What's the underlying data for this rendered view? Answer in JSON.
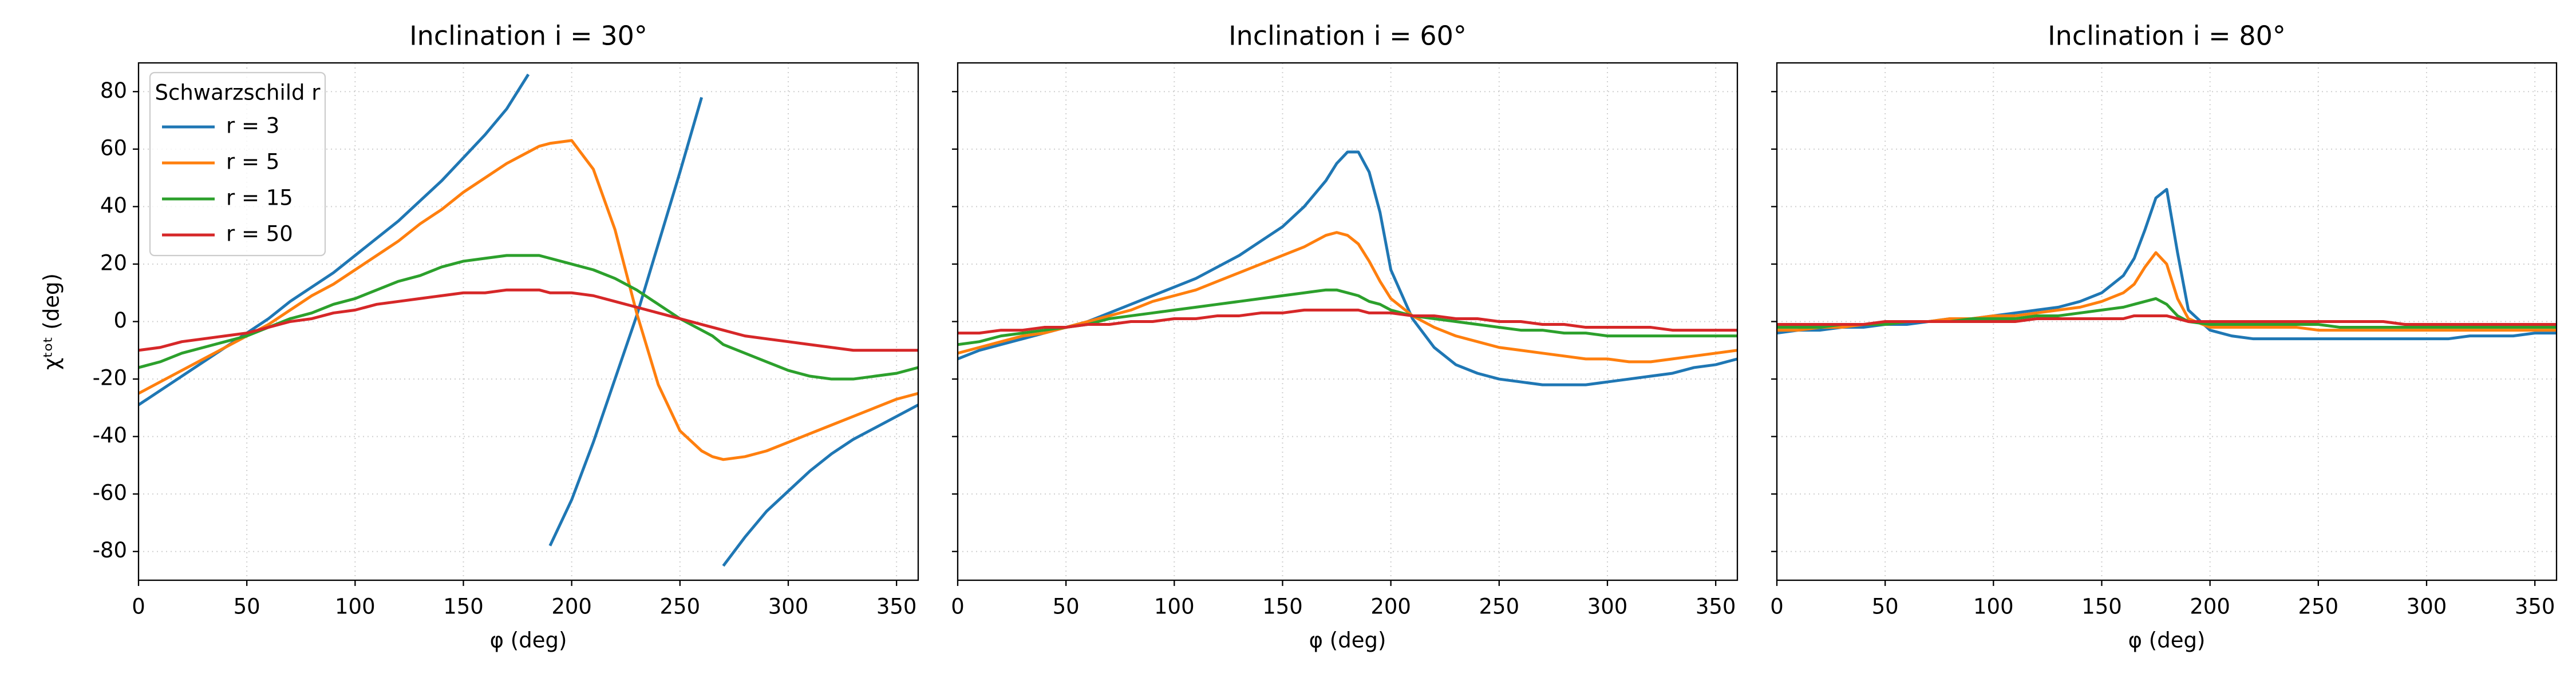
{
  "chart_data": [
    {
      "type": "line",
      "title": "Inclination i = 30°",
      "xlabel": "φ (deg)",
      "ylabel": "χᵗᵒᵗ (deg)",
      "x": [
        0,
        10,
        20,
        30,
        40,
        50,
        60,
        70,
        80,
        90,
        100,
        110,
        120,
        130,
        140,
        150,
        160,
        170,
        180,
        185,
        190,
        200,
        210,
        220,
        230,
        240,
        250,
        260,
        265,
        270,
        280,
        290,
        300,
        310,
        320,
        330,
        340,
        350,
        360
      ],
      "xlim": [
        0,
        360
      ],
      "xticks": [
        0,
        50,
        100,
        150,
        200,
        250,
        300,
        350
      ],
      "ylim": [
        -90,
        90
      ],
      "yticks": [
        -80,
        -60,
        -40,
        -20,
        0,
        20,
        40,
        60,
        80
      ],
      "show_ytick_labels": true,
      "grid": true,
      "legend": "upper left",
      "legend_title": "Schwarzschild r",
      "series": [
        {
          "name": "r = 3",
          "color": "#1f77b4",
          "values": [
            -29,
            -24,
            -19,
            -14,
            -9,
            -4,
            1,
            7,
            12,
            17,
            23,
            29,
            35,
            42,
            49,
            57,
            65,
            74,
            86,
            null,
            -78,
            -62,
            -42,
            -20,
            2,
            27,
            52,
            78,
            null,
            -85,
            -75,
            -66,
            -59,
            -52,
            -46,
            -41,
            -37,
            -33,
            -29
          ]
        },
        {
          "name": "r = 5",
          "color": "#ff7f0e",
          "values": [
            -25,
            -21,
            -17,
            -13,
            -9,
            -5,
            -1,
            4,
            9,
            13,
            18,
            23,
            28,
            34,
            39,
            45,
            50,
            55,
            59,
            61,
            62,
            63,
            53,
            32,
            3,
            -22,
            -38,
            -45,
            -47,
            -48,
            -47,
            -45,
            -42,
            -39,
            -36,
            -33,
            -30,
            -27,
            -25
          ]
        },
        {
          "name": "r = 15",
          "color": "#2ca02c",
          "values": [
            -16,
            -14,
            -11,
            -9,
            -7,
            -5,
            -2,
            1,
            3,
            6,
            8,
            11,
            14,
            16,
            19,
            21,
            22,
            23,
            23,
            23,
            22,
            20,
            18,
            15,
            11,
            6,
            1,
            -3,
            -5,
            -8,
            -11,
            -14,
            -17,
            -19,
            -20,
            -20,
            -19,
            -18,
            -16
          ]
        },
        {
          "name": "r = 50",
          "color": "#d62728",
          "values": [
            -10,
            -9,
            -7,
            -6,
            -5,
            -4,
            -2,
            0,
            1,
            3,
            4,
            6,
            7,
            8,
            9,
            10,
            10,
            11,
            11,
            11,
            10,
            10,
            9,
            7,
            5,
            3,
            1,
            -1,
            -2,
            -3,
            -5,
            -6,
            -7,
            -8,
            -9,
            -10,
            -10,
            -10,
            -10
          ]
        }
      ]
    },
    {
      "type": "line",
      "title": "Inclination i = 60°",
      "xlabel": "φ (deg)",
      "x": [
        0,
        10,
        20,
        30,
        40,
        50,
        60,
        70,
        80,
        90,
        100,
        110,
        120,
        130,
        140,
        150,
        160,
        170,
        175,
        180,
        185,
        190,
        195,
        200,
        210,
        220,
        230,
        240,
        250,
        260,
        270,
        280,
        290,
        300,
        310,
        320,
        330,
        340,
        350,
        360
      ],
      "xlim": [
        0,
        360
      ],
      "xticks": [
        0,
        50,
        100,
        150,
        200,
        250,
        300,
        350
      ],
      "ylim": [
        -90,
        90
      ],
      "yticks": [
        -80,
        -60,
        -40,
        -20,
        0,
        20,
        40,
        60,
        80
      ],
      "show_ytick_labels": false,
      "grid": true,
      "series": [
        {
          "color": "#1f77b4",
          "values": [
            -13,
            -10,
            -8,
            -6,
            -4,
            -2,
            0,
            3,
            6,
            9,
            12,
            15,
            19,
            23,
            28,
            33,
            40,
            49,
            55,
            59,
            59,
            52,
            38,
            18,
            1,
            -9,
            -15,
            -18,
            -20,
            -21,
            -22,
            -22,
            -22,
            -21,
            -20,
            -19,
            -18,
            -16,
            -15,
            -13
          ]
        },
        {
          "color": "#ff7f0e",
          "values": [
            -11,
            -9,
            -7,
            -5,
            -4,
            -2,
            0,
            2,
            4,
            7,
            9,
            11,
            14,
            17,
            20,
            23,
            26,
            30,
            31,
            30,
            27,
            21,
            14,
            8,
            2,
            -2,
            -5,
            -7,
            -9,
            -10,
            -11,
            -12,
            -13,
            -13,
            -14,
            -14,
            -13,
            -12,
            -11,
            -10
          ]
        },
        {
          "color": "#2ca02c",
          "values": [
            -8,
            -7,
            -5,
            -4,
            -3,
            -2,
            -1,
            1,
            2,
            3,
            4,
            5,
            6,
            7,
            8,
            9,
            10,
            11,
            11,
            10,
            9,
            7,
            6,
            4,
            2,
            1,
            0,
            -1,
            -2,
            -3,
            -3,
            -4,
            -4,
            -5,
            -5,
            -5,
            -5,
            -5,
            -5,
            -5
          ]
        },
        {
          "color": "#d62728",
          "values": [
            -4,
            -4,
            -3,
            -3,
            -2,
            -2,
            -1,
            -1,
            0,
            0,
            1,
            1,
            2,
            2,
            3,
            3,
            4,
            4,
            4,
            4,
            4,
            3,
            3,
            3,
            2,
            2,
            1,
            1,
            0,
            0,
            -1,
            -1,
            -2,
            -2,
            -2,
            -2,
            -3,
            -3,
            -3,
            -3
          ]
        }
      ]
    },
    {
      "type": "line",
      "title": "Inclination i = 80°",
      "xlabel": "φ (deg)",
      "x": [
        0,
        10,
        20,
        30,
        40,
        50,
        60,
        70,
        80,
        90,
        100,
        110,
        120,
        130,
        140,
        150,
        160,
        165,
        170,
        175,
        180,
        185,
        190,
        200,
        210,
        220,
        230,
        240,
        250,
        260,
        270,
        280,
        290,
        300,
        310,
        320,
        330,
        340,
        350,
        360
      ],
      "xlim": [
        0,
        360
      ],
      "xticks": [
        0,
        50,
        100,
        150,
        200,
        250,
        300,
        350
      ],
      "ylim": [
        -90,
        90
      ],
      "yticks": [
        -80,
        -60,
        -40,
        -20,
        0,
        20,
        40,
        60,
        80
      ],
      "show_ytick_labels": false,
      "grid": true,
      "series": [
        {
          "color": "#1f77b4",
          "values": [
            -4,
            -3,
            -3,
            -2,
            -2,
            -1,
            -1,
            0,
            1,
            1,
            2,
            3,
            4,
            5,
            7,
            10,
            16,
            22,
            32,
            43,
            46,
            24,
            4,
            -3,
            -5,
            -6,
            -6,
            -6,
            -6,
            -6,
            -6,
            -6,
            -6,
            -6,
            -6,
            -5,
            -5,
            -5,
            -4,
            -4
          ]
        },
        {
          "color": "#ff7f0e",
          "values": [
            -3,
            -3,
            -2,
            -2,
            -1,
            -1,
            0,
            0,
            1,
            1,
            2,
            2,
            3,
            4,
            5,
            7,
            10,
            13,
            19,
            24,
            20,
            8,
            1,
            -2,
            -2,
            -2,
            -2,
            -2,
            -3,
            -3,
            -3,
            -3,
            -3,
            -3,
            -3,
            -3,
            -3,
            -3,
            -3,
            -3
          ]
        },
        {
          "color": "#2ca02c",
          "values": [
            -2,
            -2,
            -2,
            -1,
            -1,
            -1,
            0,
            0,
            0,
            1,
            1,
            1,
            2,
            2,
            3,
            4,
            5,
            6,
            7,
            8,
            6,
            2,
            0,
            -1,
            -1,
            -1,
            -1,
            -1,
            -1,
            -2,
            -2,
            -2,
            -2,
            -2,
            -2,
            -2,
            -2,
            -2,
            -2,
            -2
          ]
        },
        {
          "color": "#d62728",
          "values": [
            -1,
            -1,
            -1,
            -1,
            -1,
            0,
            0,
            0,
            0,
            0,
            0,
            0,
            1,
            1,
            1,
            1,
            1,
            2,
            2,
            2,
            2,
            1,
            0,
            0,
            0,
            0,
            0,
            0,
            0,
            0,
            0,
            0,
            -1,
            -1,
            -1,
            -1,
            -1,
            -1,
            -1,
            -1
          ]
        }
      ]
    }
  ]
}
